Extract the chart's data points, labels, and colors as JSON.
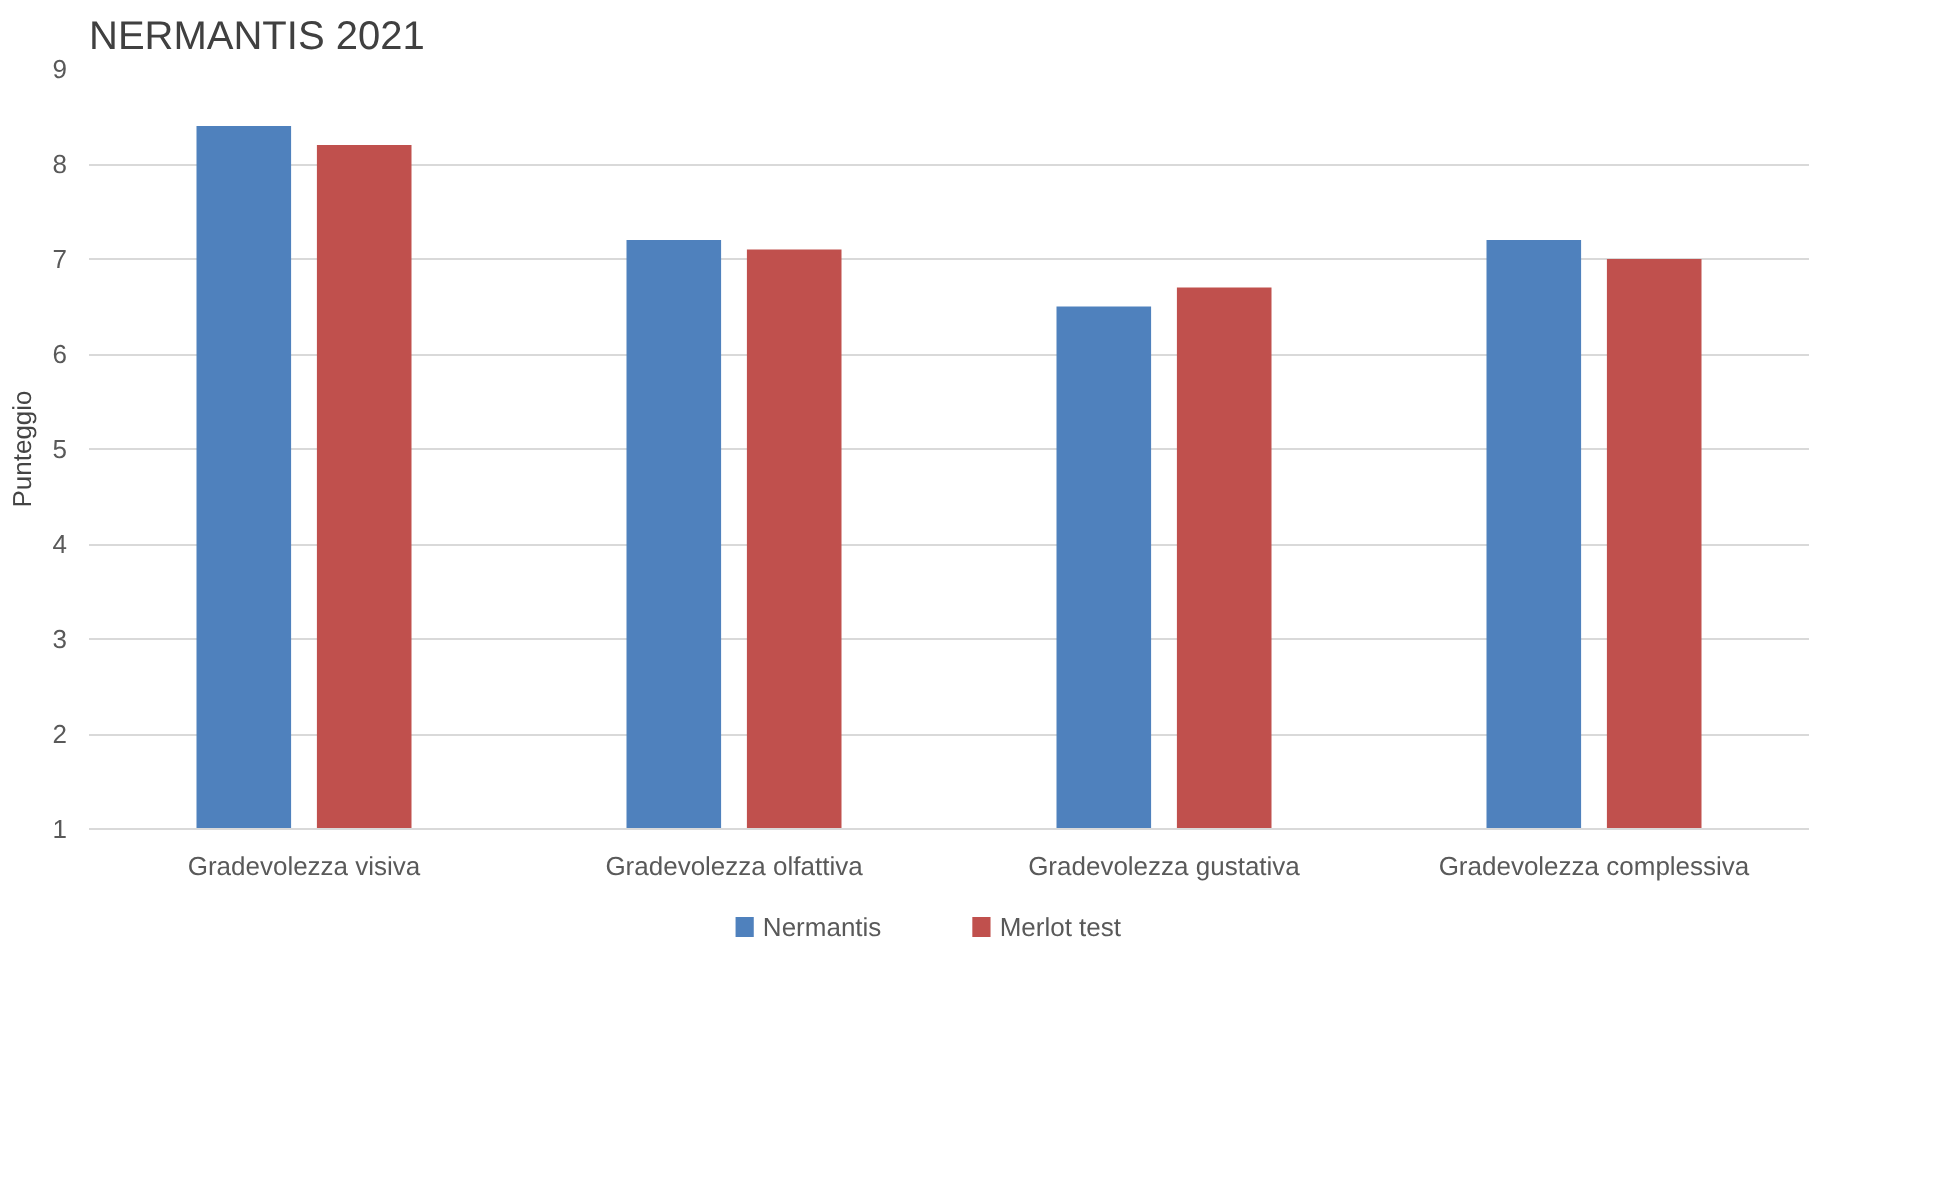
{
  "chart_data": {
    "type": "bar",
    "title": "NERMANTIS 2021",
    "ylabel": "Punteggio",
    "categories": [
      "Gradevolezza visiva",
      "Gradevolezza olfattiva",
      "Gradevolezza gustativa",
      "Gradevolezza complessiva"
    ],
    "series": [
      {
        "name": "Nermantis",
        "color": "#4f81bd",
        "values": [
          8.4,
          7.2,
          6.5,
          7.2
        ]
      },
      {
        "name": "Merlot test",
        "color": "#c0504d",
        "values": [
          8.2,
          7.1,
          6.7,
          7.0
        ]
      }
    ],
    "ylim": [
      1,
      9
    ],
    "yticks": [
      1,
      2,
      3,
      4,
      5,
      6,
      7,
      8,
      9
    ],
    "grid": "y",
    "legend": "bottom"
  }
}
